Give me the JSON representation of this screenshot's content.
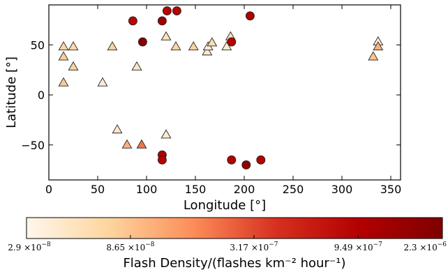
{
  "chart_data": {
    "type": "scatter",
    "xlabel": "Longitude [°]",
    "ylabel": "Latitude [°]",
    "xlim": [
      0,
      360
    ],
    "ylim": [
      -85,
      90
    ],
    "x_ticks": [
      0,
      50,
      100,
      150,
      200,
      250,
      300,
      350
    ],
    "y_ticks": [
      -50,
      0,
      50
    ],
    "colorbar": {
      "label": "Flash Density/(flashes km⁻² hour⁻¹)",
      "scale": "log",
      "min": 2.9e-08,
      "max": 2.3e-06,
      "ticks": [
        {
          "value": 2.9e-08,
          "mant": "2.9",
          "exp": "−8"
        },
        {
          "value": 8.65e-08,
          "mant": "8.65",
          "exp": "−8"
        },
        {
          "value": 3.17e-07,
          "mant": "3.17",
          "exp": "−7"
        },
        {
          "value": 9.49e-07,
          "mant": "9.49",
          "exp": "−7"
        },
        {
          "value": 2.3e-06,
          "mant": "2.3",
          "exp": "−6"
        }
      ],
      "colors": [
        "#fff7ec",
        "#fdd49e",
        "#fc8d59",
        "#d7301f",
        "#b30000",
        "#7f0000"
      ]
    },
    "series": [
      {
        "marker": "triangle",
        "points": [
          {
            "x": 15,
            "y": 48,
            "c": 6.5e-08
          },
          {
            "x": 15,
            "y": 38,
            "c": 7.5e-08
          },
          {
            "x": 15,
            "y": 12,
            "c": 8e-08
          },
          {
            "x": 25,
            "y": 48,
            "c": 6e-08
          },
          {
            "x": 25,
            "y": 28,
            "c": 7e-08
          },
          {
            "x": 55,
            "y": 12,
            "c": 3.8e-08
          },
          {
            "x": 65,
            "y": 48,
            "c": 7e-08
          },
          {
            "x": 70,
            "y": -35,
            "c": 4.2e-08
          },
          {
            "x": 80,
            "y": -50,
            "c": 1.1e-07
          },
          {
            "x": 90,
            "y": 28,
            "c": 4.5e-08
          },
          {
            "x": 95,
            "y": -50,
            "c": 2.1e-07
          },
          {
            "x": 120,
            "y": 58,
            "c": 5e-08
          },
          {
            "x": 120,
            "y": -40,
            "c": 4e-08
          },
          {
            "x": 130,
            "y": 48,
            "c": 6.5e-08
          },
          {
            "x": 148,
            "y": 48,
            "c": 7e-08
          },
          {
            "x": 162,
            "y": 43,
            "c": 4e-08
          },
          {
            "x": 163,
            "y": 48,
            "c": 3.6e-08
          },
          {
            "x": 167,
            "y": 52,
            "c": 5.5e-08
          },
          {
            "x": 182,
            "y": 48,
            "c": 4e-08
          },
          {
            "x": 186,
            "y": 58,
            "c": 5e-08
          },
          {
            "x": 332,
            "y": 38,
            "c": 8.5e-08
          },
          {
            "x": 337,
            "y": 53,
            "c": 3.6e-08
          },
          {
            "x": 337,
            "y": 48,
            "c": 1.1e-07
          }
        ]
      },
      {
        "marker": "circle",
        "points": [
          {
            "x": 86,
            "y": 74,
            "c": 8.5e-07
          },
          {
            "x": 96,
            "y": 53,
            "c": 1.9e-06
          },
          {
            "x": 116,
            "y": 74,
            "c": 1.4e-06
          },
          {
            "x": 121,
            "y": 84,
            "c": 9e-07
          },
          {
            "x": 131,
            "y": 84,
            "c": 9e-07
          },
          {
            "x": 187,
            "y": 53,
            "c": 9e-07
          },
          {
            "x": 206,
            "y": 79,
            "c": 1e-06
          },
          {
            "x": 116,
            "y": -60,
            "c": 9.5e-07
          },
          {
            "x": 116,
            "y": -65,
            "c": 9e-07
          },
          {
            "x": 187,
            "y": -65,
            "c": 1e-06
          },
          {
            "x": 202,
            "y": -70,
            "c": 1.7e-06
          },
          {
            "x": 217,
            "y": -65,
            "c": 9.5e-07
          }
        ]
      }
    ]
  }
}
